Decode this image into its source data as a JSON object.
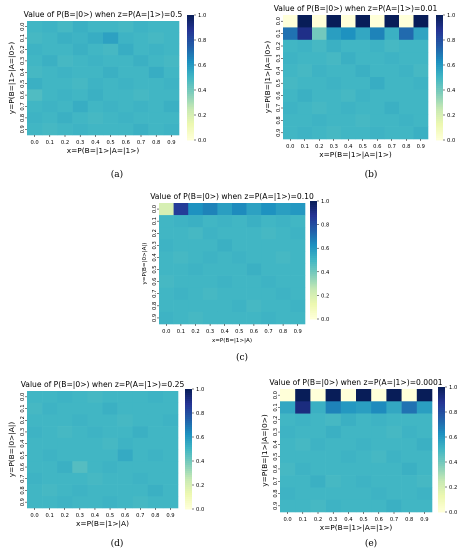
{
  "chart_data": [
    {
      "type": "heatmap",
      "caption": "(a)",
      "title": "Value of P(B=|0>) when z=P(A=|1>)=0.5",
      "xlabel": "x=P(B=|1>|A=|1>)",
      "ylabel": "y=P(B=|1>|A=|0>)",
      "x_ticks": [
        "0.0",
        "0.1",
        "0.2",
        "0.3",
        "0.4",
        "0.5",
        "0.6",
        "0.7",
        "0.8",
        "0.9"
      ],
      "y_ticks": [
        "0.0",
        "0.1",
        "0.2",
        "0.3",
        "0.4",
        "0.5",
        "0.6",
        "0.7",
        "0.8",
        "0.9"
      ],
      "colorbar_ticks": [
        "0.0",
        "0.2",
        "0.4",
        "0.6",
        "0.8",
        "1.0"
      ],
      "vmin": 0,
      "vmax": 1,
      "colormap": "YlGnBu",
      "values": [
        [
          0.5,
          0.51,
          0.49,
          0.52,
          0.5,
          0.5,
          0.49,
          0.51,
          0.5,
          0.5
        ],
        [
          0.49,
          0.5,
          0.52,
          0.51,
          0.53,
          0.57,
          0.51,
          0.5,
          0.49,
          0.5
        ],
        [
          0.51,
          0.5,
          0.5,
          0.52,
          0.5,
          0.49,
          0.53,
          0.5,
          0.51,
          0.5
        ],
        [
          0.5,
          0.52,
          0.49,
          0.5,
          0.51,
          0.5,
          0.5,
          0.52,
          0.5,
          0.49
        ],
        [
          0.49,
          0.5,
          0.51,
          0.5,
          0.5,
          0.52,
          0.5,
          0.5,
          0.53,
          0.5
        ],
        [
          0.52,
          0.5,
          0.5,
          0.49,
          0.51,
          0.5,
          0.51,
          0.5,
          0.5,
          0.51
        ],
        [
          0.47,
          0.5,
          0.51,
          0.5,
          0.52,
          0.5,
          0.5,
          0.49,
          0.5,
          0.5
        ],
        [
          0.5,
          0.51,
          0.5,
          0.53,
          0.5,
          0.51,
          0.5,
          0.51,
          0.5,
          0.52
        ],
        [
          0.51,
          0.5,
          0.52,
          0.5,
          0.49,
          0.5,
          0.51,
          0.5,
          0.5,
          0.5
        ],
        [
          0.5,
          0.49,
          0.5,
          0.51,
          0.5,
          0.5,
          0.5,
          0.52,
          0.5,
          0.51
        ]
      ]
    },
    {
      "type": "heatmap",
      "caption": "(b)",
      "title": "Value of P(B=|0>) when z=P(A=|1>)=0.01",
      "xlabel": "x=P(B=|1>|A=|1>)",
      "ylabel": "y=P(B=|1>|A=|0>)",
      "x_ticks": [
        "0.0",
        "0.1",
        "0.2",
        "0.3",
        "0.4",
        "0.5",
        "0.6",
        "0.7",
        "0.8",
        "0.9"
      ],
      "y_ticks": [
        "0.0",
        "0.1",
        "0.2",
        "0.3",
        "0.4",
        "0.5",
        "0.6",
        "0.7",
        "0.8",
        "0.9"
      ],
      "colorbar_ticks": [
        "0.0",
        "0.2",
        "0.4",
        "0.6",
        "0.8",
        "1.0"
      ],
      "vmin": 0,
      "vmax": 1,
      "colormap": "YlGnBu",
      "values": [
        [
          0.0,
          1.0,
          0.0,
          1.0,
          0.0,
          1.0,
          0.0,
          1.0,
          0.0,
          1.0
        ],
        [
          0.7,
          0.9,
          0.4,
          0.58,
          0.62,
          0.55,
          0.66,
          0.52,
          0.72,
          0.56
        ],
        [
          0.5,
          0.51,
          0.49,
          0.52,
          0.5,
          0.5,
          0.51,
          0.49,
          0.5,
          0.5
        ],
        [
          0.51,
          0.5,
          0.5,
          0.49,
          0.52,
          0.5,
          0.5,
          0.51,
          0.5,
          0.5
        ],
        [
          0.5,
          0.49,
          0.51,
          0.5,
          0.5,
          0.52,
          0.5,
          0.5,
          0.51,
          0.49
        ],
        [
          0.49,
          0.5,
          0.5,
          0.51,
          0.5,
          0.5,
          0.53,
          0.5,
          0.5,
          0.51
        ],
        [
          0.5,
          0.52,
          0.5,
          0.5,
          0.49,
          0.51,
          0.5,
          0.5,
          0.5,
          0.5
        ],
        [
          0.51,
          0.5,
          0.49,
          0.5,
          0.51,
          0.5,
          0.5,
          0.52,
          0.5,
          0.5
        ],
        [
          0.5,
          0.5,
          0.51,
          0.5,
          0.5,
          0.49,
          0.5,
          0.5,
          0.51,
          0.5
        ],
        [
          0.5,
          0.51,
          0.5,
          0.49,
          0.5,
          0.5,
          0.51,
          0.5,
          0.5,
          0.52
        ]
      ]
    },
    {
      "type": "heatmap",
      "caption": "(c)",
      "title": "Value of P(B=|0>) when z=P(A=|1>)=0.10",
      "xlabel": "x=P(B=|1>|A)",
      "ylabel": "y=P(B=|0>|A|)",
      "x_ticks": [
        "0.0",
        "0.1",
        "0.2",
        "0.3",
        "0.4",
        "0.5",
        "0.6",
        "0.7",
        "0.8",
        "0.9"
      ],
      "y_ticks": [
        "0.0",
        "0.1",
        "0.2",
        "0.3",
        "0.4",
        "0.5",
        "0.6",
        "0.7",
        "0.8",
        "0.9"
      ],
      "colorbar_ticks": [
        "0.0",
        "0.2",
        "0.4",
        "0.6",
        "0.8",
        "1.0"
      ],
      "vmin": 0,
      "vmax": 1,
      "colormap": "YlGnBu",
      "values": [
        [
          0.2,
          0.85,
          0.62,
          0.66,
          0.58,
          0.64,
          0.57,
          0.62,
          0.58,
          0.6
        ],
        [
          0.5,
          0.51,
          0.52,
          0.5,
          0.51,
          0.5,
          0.52,
          0.5,
          0.51,
          0.5
        ],
        [
          0.5,
          0.5,
          0.49,
          0.51,
          0.5,
          0.5,
          0.5,
          0.49,
          0.5,
          0.51
        ],
        [
          0.51,
          0.5,
          0.5,
          0.5,
          0.52,
          0.5,
          0.5,
          0.5,
          0.5,
          0.5
        ],
        [
          0.5,
          0.49,
          0.5,
          0.51,
          0.5,
          0.51,
          0.5,
          0.5,
          0.49,
          0.5
        ],
        [
          0.5,
          0.5,
          0.51,
          0.5,
          0.5,
          0.5,
          0.52,
          0.5,
          0.5,
          0.5
        ],
        [
          0.49,
          0.5,
          0.5,
          0.5,
          0.51,
          0.5,
          0.5,
          0.51,
          0.5,
          0.5
        ],
        [
          0.5,
          0.51,
          0.5,
          0.49,
          0.5,
          0.5,
          0.5,
          0.5,
          0.51,
          0.5
        ],
        [
          0.5,
          0.5,
          0.5,
          0.5,
          0.5,
          0.51,
          0.49,
          0.5,
          0.5,
          0.51
        ],
        [
          0.51,
          0.5,
          0.49,
          0.5,
          0.5,
          0.5,
          0.5,
          0.51,
          0.5,
          0.5
        ]
      ]
    },
    {
      "type": "heatmap",
      "caption": "(d)",
      "title": "Value of P(B=|0>) when z=P(A=|1>)=0.25",
      "xlabel": "x=P(B=|1>|A)",
      "ylabel": "y=P(B=|0>|A|)",
      "x_ticks": [
        "0.0",
        "0.1",
        "0.2",
        "0.3",
        "0.4",
        "0.5",
        "0.6",
        "0.7",
        "0.8",
        "0.9"
      ],
      "y_ticks": [
        "0.0",
        "0.1",
        "0.2",
        "0.3",
        "0.4",
        "0.5",
        "0.6",
        "0.7",
        "0.8",
        "0.9"
      ],
      "colorbar_ticks": [
        "0.0",
        "0.2",
        "0.4",
        "0.6",
        "0.8",
        "1.0"
      ],
      "vmin": 0,
      "vmax": 1,
      "colormap": "YlGnBu",
      "values": [
        [
          0.5,
          0.5,
          0.51,
          0.5,
          0.49,
          0.5,
          0.5,
          0.5,
          0.51,
          0.5
        ],
        [
          0.49,
          0.51,
          0.5,
          0.5,
          0.5,
          0.52,
          0.5,
          0.5,
          0.5,
          0.5
        ],
        [
          0.5,
          0.5,
          0.5,
          0.51,
          0.5,
          0.5,
          0.49,
          0.5,
          0.5,
          0.51
        ],
        [
          0.51,
          0.5,
          0.49,
          0.5,
          0.51,
          0.5,
          0.5,
          0.52,
          0.5,
          0.5
        ],
        [
          0.5,
          0.5,
          0.5,
          0.5,
          0.5,
          0.49,
          0.51,
          0.5,
          0.5,
          0.5
        ],
        [
          0.5,
          0.51,
          0.5,
          0.5,
          0.5,
          0.5,
          0.54,
          0.5,
          0.51,
          0.5
        ],
        [
          0.5,
          0.5,
          0.52,
          0.46,
          0.5,
          0.51,
          0.5,
          0.5,
          0.5,
          0.5
        ],
        [
          0.51,
          0.5,
          0.5,
          0.5,
          0.49,
          0.5,
          0.5,
          0.51,
          0.5,
          0.5
        ],
        [
          0.5,
          0.49,
          0.5,
          0.51,
          0.5,
          0.5,
          0.5,
          0.5,
          0.52,
          0.5
        ],
        [
          0.5,
          0.5,
          0.51,
          0.5,
          0.5,
          0.51,
          0.5,
          0.49,
          0.5,
          0.5
        ]
      ]
    },
    {
      "type": "heatmap",
      "caption": "(e)",
      "title": "Value of P(B=|0>) when z=P(A=|1>)=0.0001",
      "xlabel": "x=P(B=|1>|A=|1>)",
      "ylabel": "y=P(B=|1>|A=|0>)",
      "x_ticks": [
        "0.0",
        "0.1",
        "0.2",
        "0.3",
        "0.4",
        "0.5",
        "0.6",
        "0.7",
        "0.8",
        "0.9"
      ],
      "y_ticks": [
        "0.0",
        "0.1",
        "0.2",
        "0.3",
        "0.4",
        "0.5",
        "0.6",
        "0.7",
        "0.8",
        "0.9"
      ],
      "colorbar_ticks": [
        "0.0",
        "0.2",
        "0.4",
        "0.6",
        "0.8",
        "1.0"
      ],
      "vmin": 0,
      "vmax": 1,
      "colormap": "YlGnBu",
      "values": [
        [
          0.0,
          1.0,
          0.0,
          1.0,
          0.0,
          1.0,
          0.0,
          1.0,
          0.0,
          1.0
        ],
        [
          0.55,
          0.92,
          0.52,
          0.66,
          0.6,
          0.58,
          0.64,
          0.55,
          0.7,
          0.58
        ],
        [
          0.5,
          0.51,
          0.5,
          0.49,
          0.52,
          0.5,
          0.51,
          0.5,
          0.5,
          0.5
        ],
        [
          0.51,
          0.5,
          0.5,
          0.52,
          0.5,
          0.5,
          0.5,
          0.49,
          0.51,
          0.5
        ],
        [
          0.5,
          0.49,
          0.51,
          0.5,
          0.5,
          0.51,
          0.5,
          0.5,
          0.5,
          0.52
        ],
        [
          0.5,
          0.5,
          0.5,
          0.5,
          0.51,
          0.5,
          0.49,
          0.51,
          0.5,
          0.5
        ],
        [
          0.49,
          0.51,
          0.5,
          0.5,
          0.5,
          0.5,
          0.5,
          0.5,
          0.52,
          0.5
        ],
        [
          0.5,
          0.5,
          0.52,
          0.49,
          0.5,
          0.51,
          0.5,
          0.5,
          0.5,
          0.49
        ],
        [
          0.51,
          0.5,
          0.5,
          0.5,
          0.5,
          0.5,
          0.51,
          0.5,
          0.5,
          0.51
        ],
        [
          0.5,
          0.5,
          0.49,
          0.51,
          0.5,
          0.5,
          0.5,
          0.52,
          0.5,
          0.5
        ]
      ]
    }
  ]
}
